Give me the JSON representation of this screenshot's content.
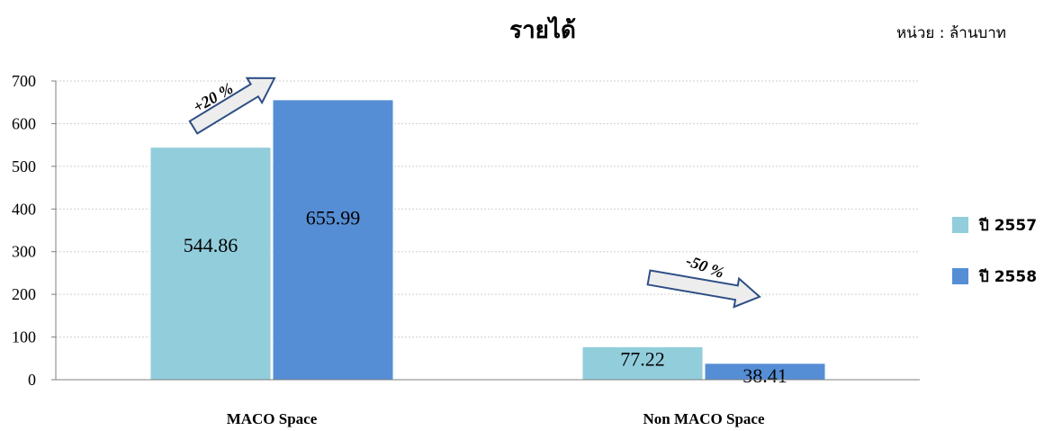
{
  "chart_data": {
    "type": "bar",
    "title": "รายได้",
    "unit_label": "หน่วย : ล้านบาท",
    "categories": [
      "MACO Space",
      "Non MACO Space"
    ],
    "series": [
      {
        "name": "ปี 2557",
        "values": [
          544.86,
          77.22
        ],
        "color": "#92CDDC"
      },
      {
        "name": "ปี 2558",
        "values": [
          655.99,
          38.41
        ],
        "color": "#558ED5"
      }
    ],
    "data_labels": [
      [
        "544.86",
        "655.99"
      ],
      [
        "77.22",
        "38.41"
      ]
    ],
    "ylim": [
      0,
      700
    ],
    "yticks": [
      0,
      100,
      200,
      300,
      400,
      500,
      600,
      700
    ],
    "grid": true,
    "legend_position": "right",
    "annotations": [
      {
        "text": "+20 %",
        "category": "MACO Space",
        "direction": "up"
      },
      {
        "text": "-50 %",
        "category": "Non MACO Space",
        "direction": "down"
      }
    ]
  }
}
